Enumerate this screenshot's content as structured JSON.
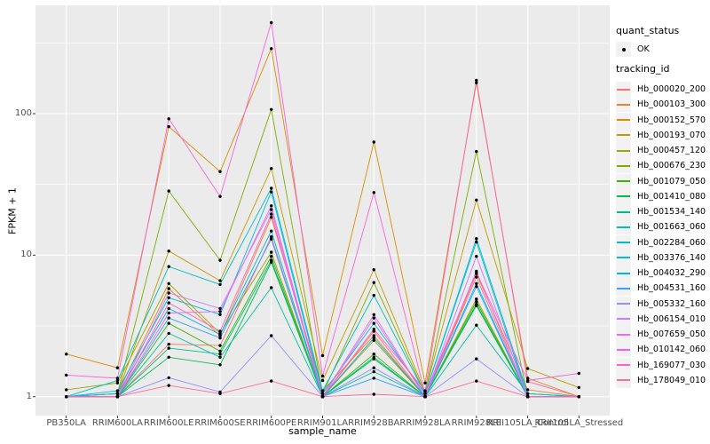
{
  "figure": {
    "y_axis": {
      "title": "FPKM + 1",
      "ticks": [
        "1",
        "10",
        "100"
      ],
      "tick_values": [
        1,
        10,
        100
      ]
    },
    "x_axis": {
      "title": "sample_name"
    },
    "legend": {
      "quant_status_title": "quant_status",
      "quant_status_items": [
        {
          "label": "OK",
          "marker": "point"
        }
      ],
      "tracking_id_title": "tracking_id"
    },
    "colors": {
      "panel_background": "#EBEBEB",
      "gridline": "#FFFFFF",
      "point": "#000000",
      "axis_text": "#4D4D4D",
      "legend_key_background": "#F2F2F2"
    }
  },
  "chart_data": {
    "type": "line",
    "title": "",
    "xlabel": "sample_name",
    "ylabel": "FPKM + 1",
    "yscale": "log10",
    "ylim": [
      1,
      570
    ],
    "grid": true,
    "legend_position": "right",
    "quant_status": "OK",
    "x": [
      "PB350LA",
      "RRIM600LA",
      "RRIM600LE",
      "RRIM600SE",
      "RRIM600PE",
      "RRIM901LA",
      "RRIM928BA",
      "RRIM928LA",
      "RRIM928LE",
      "RRII105LA_Control",
      "RRII105LA_Stressed"
    ],
    "series": [
      {
        "name": "Hb_000020_200",
        "color": "#F8766D",
        "values": [
          1.0,
          1.0,
          2.35,
          2.3,
          13.5,
          1.0,
          2.9,
          1.0,
          7.0,
          1.0,
          1.0
        ]
      },
      {
        "name": "Hb_000103_300",
        "color": "#EA8331",
        "values": [
          1.0,
          1.05,
          5.8,
          2.7,
          18.5,
          1.1,
          2.7,
          1.0,
          7.4,
          1.12,
          1.0
        ]
      },
      {
        "name": "Hb_000152_570",
        "color": "#D89000",
        "values": [
          2.0,
          1.6,
          81,
          39,
          288,
          1.95,
          63,
          1.25,
          165,
          1.35,
          1.0
        ]
      },
      {
        "name": "Hb_000193_070",
        "color": "#C09B00",
        "values": [
          1.0,
          1.05,
          10.7,
          6.6,
          41,
          1.3,
          7.9,
          1.08,
          24.5,
          1.58,
          1.16
        ]
      },
      {
        "name": "Hb_000457_120",
        "color": "#A3A500",
        "values": [
          1.12,
          1.25,
          6.3,
          2.8,
          10.5,
          1.0,
          2.5,
          1.0,
          4.9,
          1.0,
          1.0
        ]
      },
      {
        "name": "Hb_000676_230",
        "color": "#7CAE00",
        "values": [
          1.0,
          1.05,
          28.4,
          9.2,
          107,
          1.05,
          6.4,
          1.05,
          54,
          1.0,
          1.0
        ]
      },
      {
        "name": "Hb_001079_050",
        "color": "#39B600",
        "values": [
          1.0,
          1.0,
          3.3,
          2.1,
          9.8,
          1.0,
          2.0,
          1.0,
          4.7,
          1.0,
          1.0
        ]
      },
      {
        "name": "Hb_001410_080",
        "color": "#00BB4E",
        "values": [
          1.0,
          1.0,
          1.9,
          1.68,
          8.9,
          1.0,
          1.9,
          1.0,
          4.5,
          1.0,
          1.0
        ]
      },
      {
        "name": "Hb_001534_140",
        "color": "#00BF7D",
        "values": [
          1.0,
          1.0,
          2.2,
          2.0,
          9.2,
          1.0,
          1.85,
          1.0,
          4.4,
          1.0,
          1.0
        ]
      },
      {
        "name": "Hb_001663_060",
        "color": "#00C1A3",
        "values": [
          1.0,
          1.0,
          2.8,
          1.9,
          5.9,
          1.0,
          1.5,
          1.0,
          3.2,
          1.05,
          1.0
        ]
      },
      {
        "name": "Hb_002284_060",
        "color": "#00BFC4",
        "values": [
          1.0,
          1.3,
          8.3,
          6.2,
          29.7,
          1.1,
          5.2,
          1.05,
          13.1,
          1.05,
          1.0
        ]
      },
      {
        "name": "Hb_003376_140",
        "color": "#00BAE0",
        "values": [
          1.0,
          1.1,
          5.0,
          3.8,
          28.0,
          1.05,
          3.3,
          1.05,
          12.4,
          1.0,
          1.0
        ]
      },
      {
        "name": "Hb_004032_290",
        "color": "#00B0F6",
        "values": [
          1.0,
          1.05,
          4.2,
          2.75,
          14.8,
          1.0,
          2.6,
          1.0,
          6.3,
          1.0,
          1.0
        ]
      },
      {
        "name": "Hb_004531_160",
        "color": "#35A2FF",
        "values": [
          1.0,
          1.0,
          3.6,
          2.6,
          13.0,
          1.0,
          1.35,
          1.0,
          6.0,
          1.0,
          1.0
        ]
      },
      {
        "name": "Hb_005332_160",
        "color": "#9590FF",
        "values": [
          1.0,
          1.0,
          1.36,
          1.08,
          2.7,
          1.0,
          1.6,
          1.0,
          1.85,
          1.0,
          1.0
        ]
      },
      {
        "name": "Hb_006154_010",
        "color": "#C77CFF",
        "values": [
          1.0,
          1.0,
          5.4,
          4.2,
          21.0,
          1.0,
          3.8,
          1.0,
          9.8,
          1.0,
          1.0
        ]
      },
      {
        "name": "Hb_007659_050",
        "color": "#E76BF3",
        "values": [
          1.0,
          1.0,
          3.9,
          4.0,
          22.3,
          1.0,
          3.6,
          1.0,
          7.7,
          1.0,
          1.0
        ]
      },
      {
        "name": "Hb_010142_060",
        "color": "#FA62DB",
        "values": [
          1.42,
          1.35,
          92,
          26,
          440,
          1.4,
          27.7,
          1.05,
          7.5,
          1.3,
          1.46
        ]
      },
      {
        "name": "Hb_169077_030",
        "color": "#FF62BC",
        "values": [
          1.0,
          1.0,
          4.6,
          2.9,
          19.5,
          1.0,
          3.0,
          1.1,
          172,
          1.28,
          1.0
        ]
      },
      {
        "name": "Hb_178049_010",
        "color": "#FF6A98",
        "values": [
          1.0,
          1.0,
          1.2,
          1.05,
          1.29,
          1.0,
          1.04,
          1.0,
          1.29,
          1.0,
          1.0
        ]
      }
    ]
  }
}
